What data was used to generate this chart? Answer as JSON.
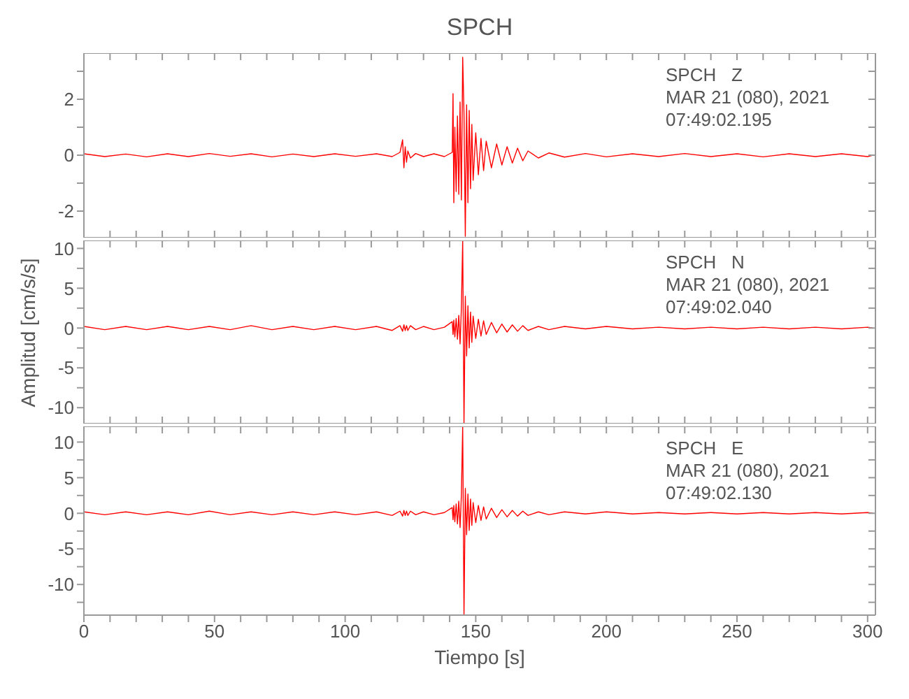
{
  "chart_data": [
    {
      "type": "line",
      "title": "SPCH",
      "annotations": [
        "SPCH   Z",
        "MAR 21 (080), 2021",
        "07:49:02.195"
      ],
      "tick_labels": "y",
      "x": [
        0,
        8,
        16,
        24,
        32,
        40,
        48,
        56,
        64,
        72,
        80,
        88,
        96,
        104,
        112,
        118,
        121,
        122,
        122.5,
        123,
        123.5,
        124,
        125,
        127,
        130,
        134,
        138,
        141,
        141.3,
        141.6,
        142,
        142.5,
        143,
        143.5,
        144,
        144.5,
        145,
        145.5,
        146,
        146.5,
        147,
        147.5,
        148,
        148.5,
        149,
        150,
        151,
        152,
        153,
        154,
        156,
        158,
        160,
        162,
        164,
        166,
        168,
        170,
        174,
        178,
        184,
        192,
        200,
        210,
        220,
        230,
        240,
        250,
        260,
        270,
        280,
        290,
        300,
        302
      ],
      "series": [
        {
          "color": "#ff0000",
          "values": [
            0.05,
            -0.05,
            0.04,
            -0.06,
            0.05,
            -0.05,
            0.06,
            -0.04,
            0.05,
            -0.06,
            0.04,
            -0.05,
            0.05,
            -0.04,
            0.05,
            -0.05,
            0.1,
            0.55,
            -0.45,
            0.3,
            -0.25,
            0.15,
            -0.1,
            0.06,
            -0.05,
            0.05,
            -0.05,
            0.1,
            2.2,
            -1.7,
            1.0,
            -1.3,
            1.4,
            -1.4,
            1.9,
            -1.6,
            3.5,
            1.5,
            -2.9,
            1.8,
            -1.7,
            1.6,
            -1.2,
            1.1,
            -0.9,
            0.8,
            -0.7,
            0.6,
            -0.55,
            0.5,
            -0.45,
            0.4,
            -0.35,
            0.3,
            -0.28,
            0.25,
            -0.2,
            0.15,
            -0.1,
            0.08,
            -0.07,
            0.06,
            -0.06,
            0.05,
            -0.05,
            0.06,
            -0.05,
            0.05,
            -0.06,
            0.05,
            -0.05,
            0.05,
            -0.05,
            0
          ]
        }
      ],
      "xlim": [
        0,
        303
      ],
      "ylim": [
        -2.95,
        3.65
      ],
      "xticks": [
        {
          "value": 0,
          "label": null
        },
        {
          "value": 10,
          "label": null
        },
        {
          "value": 20,
          "label": null
        },
        {
          "value": 30,
          "label": null
        },
        {
          "value": 40,
          "label": null
        },
        {
          "value": 50,
          "label": null
        },
        {
          "value": 60,
          "label": null
        },
        {
          "value": 70,
          "label": null
        },
        {
          "value": 80,
          "label": null
        },
        {
          "value": 90,
          "label": null
        },
        {
          "value": 100,
          "label": null
        },
        {
          "value": 110,
          "label": null
        },
        {
          "value": 120,
          "label": null
        },
        {
          "value": 130,
          "label": null
        },
        {
          "value": 140,
          "label": null
        },
        {
          "value": 150,
          "label": null
        },
        {
          "value": 160,
          "label": null
        },
        {
          "value": 170,
          "label": null
        },
        {
          "value": 180,
          "label": null
        },
        {
          "value": 190,
          "label": null
        },
        {
          "value": 200,
          "label": null
        },
        {
          "value": 210,
          "label": null
        },
        {
          "value": 220,
          "label": null
        },
        {
          "value": 230,
          "label": null
        },
        {
          "value": 240,
          "label": null
        },
        {
          "value": 250,
          "label": null
        },
        {
          "value": 260,
          "label": null
        },
        {
          "value": 270,
          "label": null
        },
        {
          "value": 280,
          "label": null
        },
        {
          "value": 290,
          "label": null
        },
        {
          "value": 300,
          "label": null
        }
      ],
      "yticks": [
        -2,
        {
          "value": -1,
          "label": null
        },
        0,
        {
          "value": 1,
          "label": null
        },
        2,
        {
          "value": 3,
          "label": null
        }
      ]
    },
    {
      "type": "line",
      "ylabel": "Amplitud [cm/s/s]",
      "annotations": [
        "SPCH   N",
        "MAR 21 (080), 2021",
        "07:49:02.040"
      ],
      "tick_labels": "y",
      "x": [
        0,
        8,
        16,
        24,
        32,
        40,
        48,
        56,
        64,
        72,
        80,
        88,
        96,
        104,
        112,
        118,
        121,
        122,
        122.5,
        123,
        123.5,
        124,
        125,
        127,
        130,
        134,
        138,
        141,
        141.3,
        141.6,
        142,
        142.5,
        143,
        143.5,
        144,
        144.5,
        145,
        145.5,
        146,
        146.5,
        147,
        147.5,
        148,
        148.5,
        149,
        150,
        151,
        152,
        153,
        154,
        156,
        158,
        160,
        162,
        164,
        166,
        168,
        170,
        174,
        178,
        184,
        192,
        200,
        210,
        220,
        230,
        240,
        250,
        260,
        270,
        280,
        290,
        300,
        302
      ],
      "series": [
        {
          "color": "#ff0000",
          "values": [
            0.2,
            -0.2,
            0.2,
            -0.2,
            0.2,
            -0.2,
            0.2,
            -0.2,
            0.3,
            -0.2,
            0.2,
            -0.2,
            0.2,
            -0.2,
            0.2,
            -0.3,
            0.3,
            -0.4,
            0.4,
            -0.3,
            0.3,
            -0.3,
            0.3,
            -0.2,
            0.2,
            -0.2,
            0.1,
            0.8,
            -0.8,
            1.0,
            -1.1,
            1.2,
            -1.4,
            1.6,
            -2.0,
            2.5,
            11,
            -12,
            4.0,
            -3.5,
            2.8,
            -2.5,
            2.0,
            -1.8,
            1.5,
            -1.3,
            1.1,
            -1.0,
            0.9,
            -0.8,
            0.7,
            -0.6,
            0.5,
            -0.5,
            0.4,
            -0.4,
            0.3,
            -0.3,
            0.2,
            -0.2,
            0.2,
            -0.1,
            0.2,
            -0.1,
            0.1,
            -0.1,
            0.1,
            -0.1,
            0.1,
            -0.1,
            0.1,
            -0.1,
            0.1,
            0
          ]
        }
      ],
      "xlim": [
        0,
        303
      ],
      "ylim": [
        -12,
        11
      ],
      "xticks": [
        {
          "value": 0,
          "label": null
        },
        {
          "value": 10,
          "label": null
        },
        {
          "value": 20,
          "label": null
        },
        {
          "value": 30,
          "label": null
        },
        {
          "value": 40,
          "label": null
        },
        {
          "value": 50,
          "label": null
        },
        {
          "value": 60,
          "label": null
        },
        {
          "value": 70,
          "label": null
        },
        {
          "value": 80,
          "label": null
        },
        {
          "value": 90,
          "label": null
        },
        {
          "value": 100,
          "label": null
        },
        {
          "value": 110,
          "label": null
        },
        {
          "value": 120,
          "label": null
        },
        {
          "value": 130,
          "label": null
        },
        {
          "value": 140,
          "label": null
        },
        {
          "value": 150,
          "label": null
        },
        {
          "value": 160,
          "label": null
        },
        {
          "value": 170,
          "label": null
        },
        {
          "value": 180,
          "label": null
        },
        {
          "value": 190,
          "label": null
        },
        {
          "value": 200,
          "label": null
        },
        {
          "value": 210,
          "label": null
        },
        {
          "value": 220,
          "label": null
        },
        {
          "value": 230,
          "label": null
        },
        {
          "value": 240,
          "label": null
        },
        {
          "value": 250,
          "label": null
        },
        {
          "value": 260,
          "label": null
        },
        {
          "value": 270,
          "label": null
        },
        {
          "value": 280,
          "label": null
        },
        {
          "value": 290,
          "label": null
        },
        {
          "value": 300,
          "label": null
        }
      ],
      "yticks": [
        -10,
        {
          "value": -7.5,
          "label": null
        },
        -5,
        {
          "value": -2.5,
          "label": null
        },
        0,
        {
          "value": 2.5,
          "label": null
        },
        5,
        {
          "value": 7.5,
          "label": null
        },
        10
      ]
    },
    {
      "type": "line",
      "xlabel": "Tiempo [s]",
      "annotations": [
        "SPCH   E",
        "MAR 21 (080), 2021",
        "07:49:02.130"
      ],
      "x": [
        0,
        8,
        16,
        24,
        32,
        40,
        48,
        56,
        64,
        72,
        80,
        88,
        96,
        104,
        112,
        118,
        121,
        122,
        122.5,
        123,
        123.5,
        124,
        125,
        127,
        130,
        134,
        138,
        141,
        141.3,
        141.6,
        142,
        142.5,
        143,
        143.5,
        144,
        144.5,
        145,
        145.5,
        146,
        146.5,
        147,
        147.5,
        148,
        148.5,
        149,
        150,
        151,
        152,
        153,
        154,
        156,
        158,
        160,
        162,
        164,
        166,
        168,
        170,
        174,
        178,
        184,
        192,
        200,
        210,
        220,
        230,
        240,
        250,
        260,
        270,
        280,
        290,
        300,
        302
      ],
      "series": [
        {
          "color": "#ff0000",
          "values": [
            0.2,
            -0.2,
            0.2,
            -0.2,
            0.2,
            -0.2,
            0.3,
            -0.2,
            0.2,
            -0.2,
            0.2,
            -0.2,
            0.2,
            -0.2,
            0.2,
            -0.3,
            0.3,
            -0.4,
            0.4,
            -0.3,
            0.3,
            -0.3,
            0.3,
            -0.2,
            0.2,
            -0.2,
            0.1,
            0.8,
            -0.9,
            1.1,
            -1.2,
            1.3,
            -1.5,
            1.7,
            -2.0,
            2.5,
            12.2,
            -14.3,
            3.5,
            -3.0,
            2.7,
            -2.4,
            2.0,
            -1.7,
            1.5,
            -1.3,
            1.1,
            -1.0,
            0.9,
            -0.8,
            0.7,
            -0.6,
            0.5,
            -0.5,
            0.4,
            -0.4,
            0.3,
            -0.3,
            0.2,
            -0.2,
            0.2,
            -0.1,
            0.2,
            -0.1,
            0.1,
            -0.1,
            0.1,
            -0.1,
            0.1,
            -0.1,
            0.1,
            -0.1,
            0.1,
            0
          ]
        }
      ],
      "xlim": [
        0,
        303
      ],
      "ylim": [
        -14.3,
        12.2
      ],
      "xticks": [
        0,
        {
          "value": 10,
          "label": null
        },
        {
          "value": 20,
          "label": null
        },
        {
          "value": 30,
          "label": null
        },
        {
          "value": 40,
          "label": null
        },
        50,
        {
          "value": 60,
          "label": null
        },
        {
          "value": 70,
          "label": null
        },
        {
          "value": 80,
          "label": null
        },
        {
          "value": 90,
          "label": null
        },
        100,
        {
          "value": 110,
          "label": null
        },
        {
          "value": 120,
          "label": null
        },
        {
          "value": 130,
          "label": null
        },
        {
          "value": 140,
          "label": null
        },
        150,
        {
          "value": 160,
          "label": null
        },
        {
          "value": 170,
          "label": null
        },
        {
          "value": 180,
          "label": null
        },
        {
          "value": 190,
          "label": null
        },
        200,
        {
          "value": 210,
          "label": null
        },
        {
          "value": 220,
          "label": null
        },
        {
          "value": 230,
          "label": null
        },
        {
          "value": 240,
          "label": null
        },
        250,
        {
          "value": 260,
          "label": null
        },
        {
          "value": 270,
          "label": null
        },
        {
          "value": 280,
          "label": null
        },
        {
          "value": 290,
          "label": null
        },
        300
      ],
      "yticks": [
        {
          "value": -12.5,
          "label": null
        },
        -10,
        {
          "value": -7.5,
          "label": null
        },
        -5,
        {
          "value": -2.5,
          "label": null
        },
        0,
        {
          "value": 2.5,
          "label": null
        },
        5,
        {
          "value": 7.5,
          "label": null
        },
        10
      ]
    }
  ]
}
